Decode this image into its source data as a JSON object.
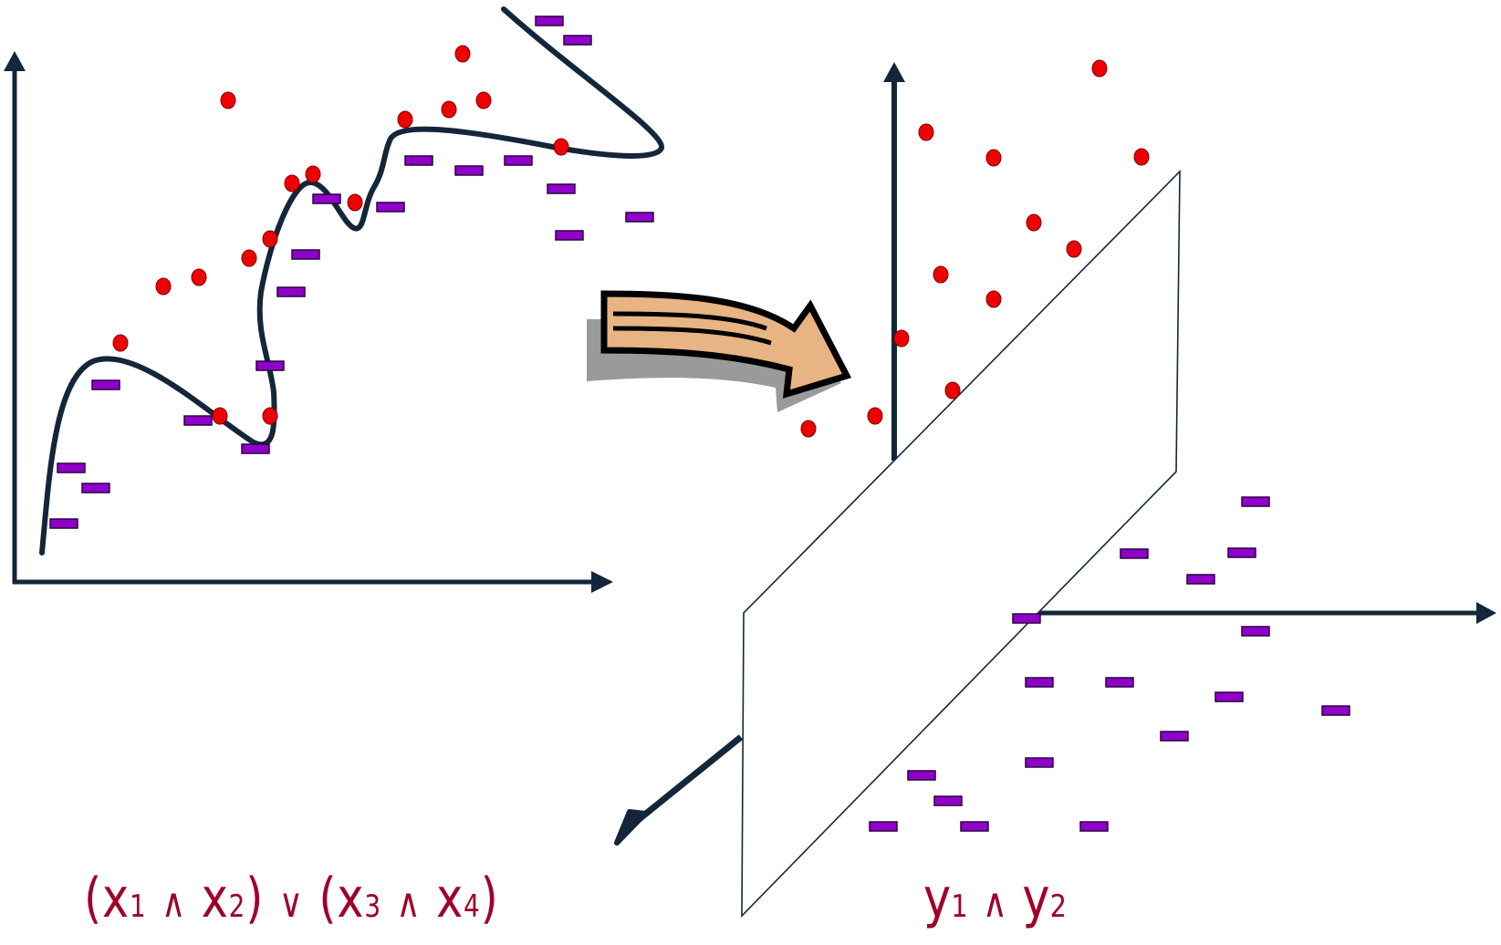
{
  "colors": {
    "axis": "#13263a",
    "curve": "#13263a",
    "positive_point": "#ee0000",
    "negative_point": "#8f00c9",
    "arrow_fill": "#e8b484",
    "arrow_shadow": "#9a9a9a",
    "formula": "#a0002a"
  },
  "icons": {
    "positive_marker": "red-dot",
    "negative_marker": "purple-dash",
    "transform_arrow": "curved-right-arrow-icon"
  },
  "left_formula": {
    "open1": "(",
    "x1": "x",
    "s1": "1",
    "and1": "∧",
    "x2": "x",
    "s2": "2",
    "close1": ")",
    "or": "∨",
    "open2": "(",
    "x3": "x",
    "s3": "3",
    "and2": "∧",
    "x4": "x",
    "s4": "4",
    "close2": ")"
  },
  "right_formula": {
    "y1": "y",
    "s1": "1",
    "and": "∧",
    "y2": "y",
    "s2": "2"
  }
}
